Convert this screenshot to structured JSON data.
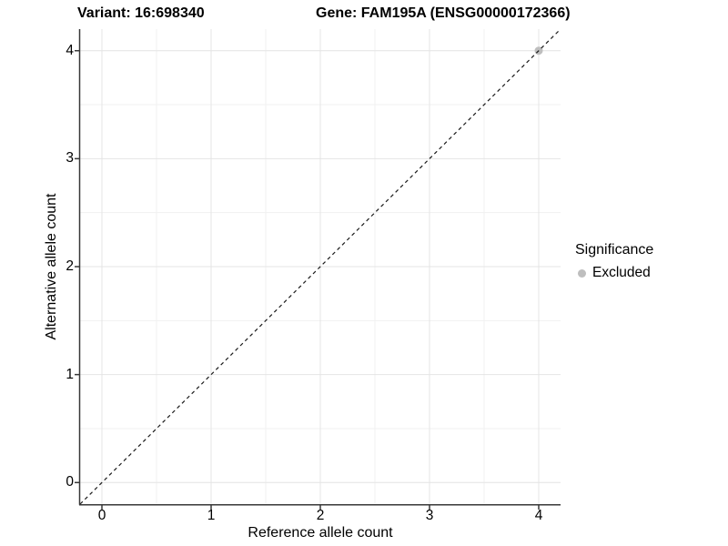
{
  "chart_data": {
    "type": "scatter",
    "titles": {
      "left": "Variant: 16:698340",
      "right": "Gene: FAM195A (ENSG00000172366)"
    },
    "xlabel": "Reference allele count",
    "ylabel": "Alternative allele count",
    "xlim": [
      -0.2,
      4.2
    ],
    "ylim": [
      -0.2,
      4.2
    ],
    "x_ticks": [
      0,
      1,
      2,
      3,
      4
    ],
    "y_ticks": [
      0,
      1,
      2,
      3,
      4
    ],
    "minor_gridlines": [
      0.5,
      1.5,
      2.5,
      3.5
    ],
    "grid": "major+minor",
    "points": [
      {
        "x": 4,
        "y": 4,
        "significance": "Excluded"
      }
    ],
    "reference_line": {
      "slope": 1,
      "intercept": 0,
      "style": "dashed"
    },
    "legend": {
      "position": "right",
      "title": "Significance",
      "entries": [
        {
          "label": "Excluded",
          "color": "#bebebe"
        }
      ]
    },
    "colors": {
      "point_excluded": "#bebebe",
      "grid_major": "#e4e4e4",
      "grid_minor": "#f1f1f1",
      "axis_line": "#383838",
      "reference_line": "#1a1a1a",
      "background": "#ffffff"
    }
  }
}
